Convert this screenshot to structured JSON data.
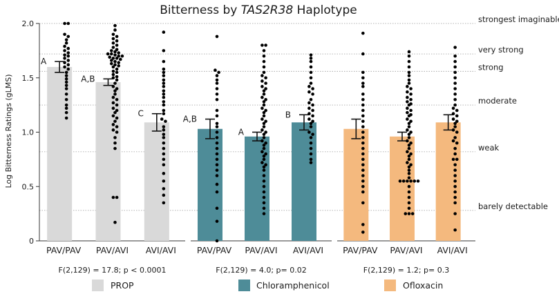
{
  "chart_data": {
    "type": "bar",
    "title_prefix": "Bitterness by ",
    "title_gene": "TAS2R38",
    "title_suffix": " Haplotype",
    "ylabel": "Log Bitterness Ratings (gLMS)",
    "ylim": [
      0,
      2.0
    ],
    "yticks": [
      "0",
      "0.5",
      "1.0",
      "1.5",
      "2.0"
    ],
    "ytick_values": [
      0,
      0.5,
      1.0,
      1.5,
      2.0
    ],
    "categories": [
      "PAV/PAV",
      "PAV/AVI",
      "AVI/AVI"
    ],
    "anchors": [
      {
        "label": "strongest imaginable",
        "value": 2.0
      },
      {
        "label": "very strong",
        "value": 1.72
      },
      {
        "label": "strong",
        "value": 1.56
      },
      {
        "label": "moderate",
        "value": 1.25
      },
      {
        "label": "weak",
        "value": 0.82
      },
      {
        "label": "barely detectable",
        "value": 0.28
      }
    ],
    "panels": [
      {
        "name": "PROP",
        "color": "#d9d9d9",
        "stat": "F(2,129) = 17.8; p < 0.0001",
        "values": [
          1.6,
          1.46,
          1.09
        ],
        "errors": [
          0.05,
          0.03,
          0.08
        ],
        "sig_labels": [
          "A",
          "A,B",
          "C"
        ],
        "points": [
          [
            2.0,
            2.0,
            1.9,
            1.88,
            1.85,
            1.82,
            1.79,
            1.77,
            1.75,
            1.73,
            1.71,
            1.7,
            1.68,
            1.66,
            1.64,
            1.62,
            1.6,
            1.58,
            1.55,
            1.52,
            1.49,
            1.46,
            1.43,
            1.4,
            1.35,
            1.3,
            1.25,
            1.22,
            1.18,
            1.13
          ],
          [
            1.98,
            1.94,
            1.9,
            1.88,
            1.86,
            1.84,
            1.82,
            1.8,
            1.78,
            1.76,
            1.75,
            1.74,
            1.73,
            1.72,
            1.72,
            1.71,
            1.7,
            1.7,
            1.69,
            1.68,
            1.68,
            1.67,
            1.66,
            1.65,
            1.64,
            1.63,
            1.62,
            1.61,
            1.6,
            1.58,
            1.56,
            1.55,
            1.53,
            1.51,
            1.5,
            1.48,
            1.45,
            1.42,
            1.4,
            1.38,
            1.35,
            1.32,
            1.3,
            1.27,
            1.25,
            1.22,
            1.2,
            1.18,
            1.15,
            1.13,
            1.1,
            1.07,
            1.05,
            1.02,
            1.0,
            0.95,
            0.9,
            0.85,
            0.4,
            0.4,
            0.17
          ],
          [
            1.92,
            1.75,
            1.65,
            1.58,
            1.55,
            1.52,
            1.48,
            1.45,
            1.42,
            1.38,
            1.35,
            1.32,
            1.28,
            1.25,
            1.2,
            1.17,
            1.12,
            1.1,
            1.05,
            1.02,
            0.98,
            0.95,
            0.9,
            0.85,
            0.8,
            0.75,
            0.7,
            0.62,
            0.55,
            0.48,
            0.42,
            0.35
          ]
        ]
      },
      {
        "name": "Chloramphenicol",
        "color": "#4e8c98",
        "stat": "F(2,129) = 4.0; p= 0.02",
        "values": [
          1.03,
          0.96,
          1.09
        ],
        "errors": [
          0.09,
          0.04,
          0.07
        ],
        "sig_labels": [
          "A,B",
          "A",
          "B"
        ],
        "points": [
          [
            1.88,
            1.57,
            1.55,
            1.52,
            1.48,
            1.45,
            1.4,
            1.35,
            1.3,
            1.2,
            1.15,
            1.08,
            1.05,
            1.0,
            0.95,
            0.9,
            0.85,
            0.8,
            0.75,
            0.7,
            0.65,
            0.6,
            0.52,
            0.45,
            0.3,
            0.18,
            0.0
          ],
          [
            1.8,
            1.8,
            1.75,
            1.7,
            1.65,
            1.6,
            1.55,
            1.52,
            1.5,
            1.47,
            1.45,
            1.42,
            1.4,
            1.38,
            1.35,
            1.32,
            1.3,
            1.28,
            1.25,
            1.22,
            1.2,
            1.18,
            1.15,
            1.12,
            1.1,
            1.08,
            1.05,
            1.02,
            1.0,
            0.98,
            0.95,
            0.92,
            0.9,
            0.88,
            0.85,
            0.82,
            0.8,
            0.78,
            0.75,
            0.72,
            0.7,
            0.68,
            0.65,
            0.6,
            0.55,
            0.5,
            0.45,
            0.4,
            0.35,
            0.3,
            0.25
          ],
          [
            1.71,
            1.68,
            1.65,
            1.6,
            1.55,
            1.5,
            1.45,
            1.42,
            1.4,
            1.37,
            1.35,
            1.3,
            1.27,
            1.25,
            1.22,
            1.2,
            1.17,
            1.15,
            1.12,
            1.1,
            1.08,
            1.05,
            1.0,
            0.98,
            0.95,
            0.9,
            0.85,
            0.8,
            0.75,
            0.72
          ]
        ]
      },
      {
        "name": "Ofloxacin",
        "color": "#f4b97e",
        "stat": "F(2,129) = 1.2; p= 0.3",
        "values": [
          1.03,
          0.96,
          1.09
        ],
        "errors": [
          0.09,
          0.04,
          0.07
        ],
        "sig_labels": [
          "",
          "",
          ""
        ],
        "points": [
          [
            1.91,
            1.72,
            1.55,
            1.5,
            1.45,
            1.42,
            1.35,
            1.3,
            1.25,
            1.2,
            1.15,
            1.1,
            1.05,
            1.0,
            0.95,
            0.9,
            0.85,
            0.8,
            0.75,
            0.7,
            0.65,
            0.6,
            0.55,
            0.5,
            0.45,
            0.35,
            0.15,
            0.08
          ],
          [
            1.74,
            1.7,
            1.65,
            1.6,
            1.55,
            1.52,
            1.48,
            1.45,
            1.42,
            1.4,
            1.37,
            1.35,
            1.32,
            1.3,
            1.28,
            1.26,
            1.25,
            1.22,
            1.2,
            1.18,
            1.16,
            1.15,
            1.12,
            1.1,
            1.08,
            1.05,
            1.02,
            1.0,
            0.98,
            0.95,
            0.92,
            0.9,
            0.88,
            0.85,
            0.82,
            0.8,
            0.78,
            0.75,
            0.72,
            0.7,
            0.68,
            0.65,
            0.62,
            0.58,
            0.55,
            0.55,
            0.55,
            0.55,
            0.55,
            0.55,
            0.5,
            0.45,
            0.4,
            0.35,
            0.3,
            0.25,
            0.25,
            0.25
          ],
          [
            1.78,
            1.7,
            1.65,
            1.6,
            1.55,
            1.5,
            1.45,
            1.4,
            1.35,
            1.3,
            1.25,
            1.22,
            1.2,
            1.17,
            1.15,
            1.12,
            1.1,
            1.08,
            1.05,
            1.02,
            1.0,
            0.95,
            0.92,
            0.9,
            0.85,
            0.8,
            0.75,
            0.75,
            0.7,
            0.65,
            0.6,
            0.55,
            0.5,
            0.45,
            0.4,
            0.35,
            0.25,
            0.1
          ]
        ]
      }
    ]
  }
}
